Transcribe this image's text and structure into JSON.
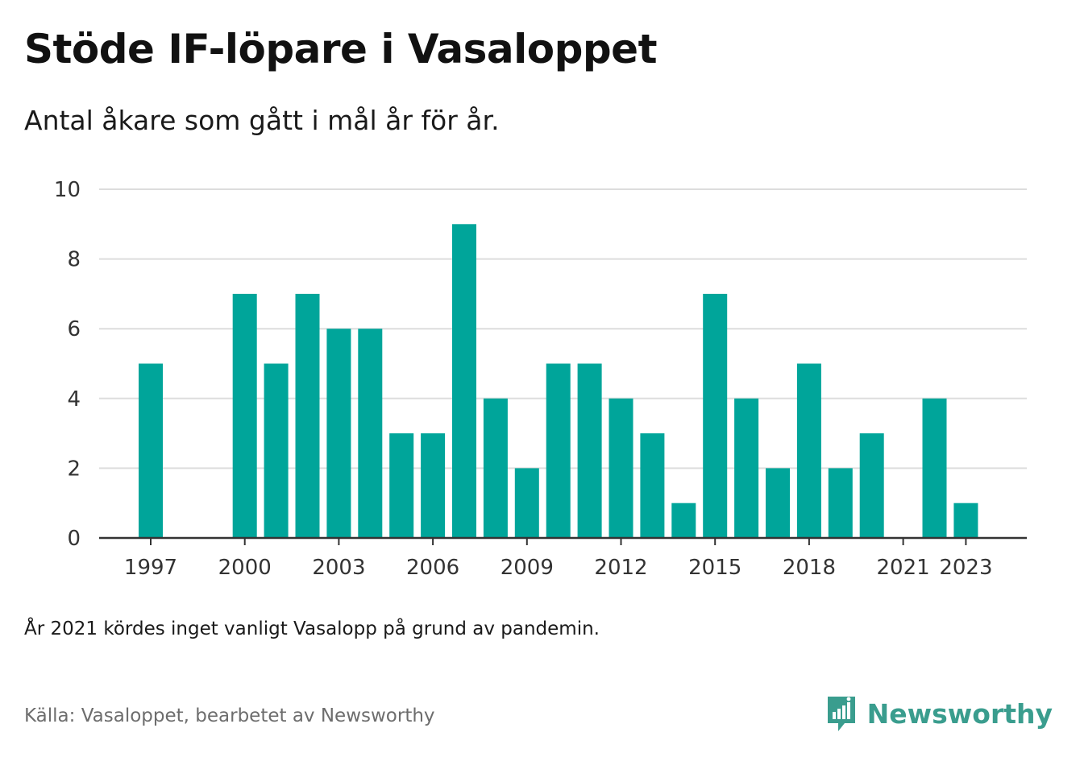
{
  "title": "Stöde IF-löpare i Vasaloppet",
  "subtitle": "Antal åkare som gått i mål år för år.",
  "note": "År 2021 kördes inget vanligt Vasalopp på grund av pandemin.",
  "source": "Källa: Vasaloppet, bearbetet av Newsworthy",
  "brand": {
    "name": "Newsworthy",
    "icon": "newsworthy-logo-icon",
    "color": "#3a9d8e"
  },
  "chart_data": {
    "type": "bar",
    "categories": [
      "1997",
      "1998",
      "1999",
      "2000",
      "2001",
      "2002",
      "2003",
      "2004",
      "2005",
      "2006",
      "2007",
      "2008",
      "2009",
      "2010",
      "2011",
      "2012",
      "2013",
      "2014",
      "2015",
      "2016",
      "2017",
      "2018",
      "2019",
      "2020",
      "2021",
      "2022",
      "2023"
    ],
    "values": [
      5,
      0,
      0,
      7,
      5,
      7,
      6,
      6,
      3,
      3,
      9,
      4,
      2,
      5,
      5,
      4,
      3,
      1,
      7,
      4,
      2,
      5,
      2,
      3,
      0,
      4,
      1
    ],
    "x_tick_labels": [
      "1997",
      "2000",
      "2003",
      "2006",
      "2009",
      "2012",
      "2015",
      "2018",
      "2021",
      "2023"
    ],
    "y_ticks": [
      0,
      2,
      4,
      6,
      8,
      10
    ],
    "ylim": [
      0,
      10
    ],
    "xlabel": "",
    "ylabel": "",
    "grid": true,
    "bar_color": "#00a59a",
    "grid_color": "#dddddd",
    "axis_color": "#333333"
  }
}
